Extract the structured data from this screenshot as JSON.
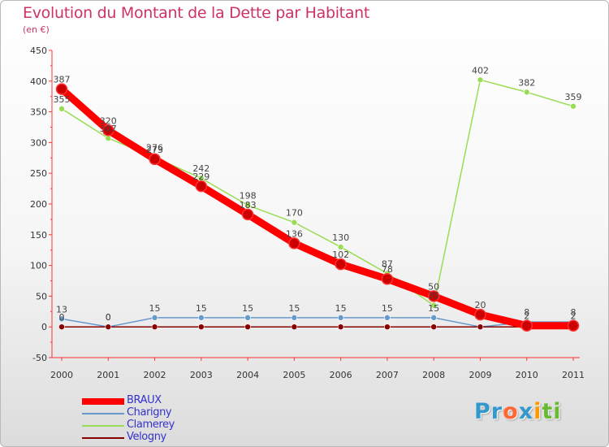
{
  "chart_data": {
    "type": "line",
    "title": "Evolution du Montant de la Dette par Habitant",
    "subtitle": "(en €)",
    "xlabel": "",
    "ylabel": "",
    "x": [
      "2000",
      "2001",
      "2002",
      "2003",
      "2004",
      "2005",
      "2006",
      "2007",
      "2008",
      "2009",
      "2010",
      "2011"
    ],
    "ylim": [
      -50,
      450
    ],
    "yticks": [
      -50,
      0,
      50,
      100,
      150,
      200,
      250,
      300,
      350,
      400,
      450
    ],
    "grid": false,
    "legend_position": "bottom-left",
    "series": [
      {
        "name": "BRAUX",
        "color": "#ff0000",
        "width": 9,
        "values": [
          387,
          320,
          273,
          229,
          183,
          136,
          102,
          78,
          50,
          20,
          2,
          2
        ],
        "labels": [
          "387",
          "320",
          "273",
          "229",
          "183",
          "136",
          "102",
          "78",
          "50",
          "20",
          "2",
          "2"
        ]
      },
      {
        "name": "Charigny",
        "color": "#6699cc",
        "width": 1.5,
        "values": [
          13,
          0,
          15,
          15,
          15,
          15,
          15,
          15,
          15,
          0,
          8,
          8
        ],
        "labels": [
          "13",
          "0",
          "15",
          "15",
          "15",
          "15",
          "15",
          "15",
          "15",
          "",
          "8",
          "8"
        ]
      },
      {
        "name": "Clamerey",
        "color": "#99dd55",
        "width": 1.5,
        "values": [
          355,
          307,
          276,
          242,
          198,
          170,
          130,
          87,
          35,
          402,
          382,
          359
        ],
        "labels": [
          "355",
          "307",
          "276",
          "242",
          "198",
          "170",
          "130",
          "87",
          "35",
          "402",
          "382",
          "359"
        ]
      },
      {
        "name": "Velogny",
        "color": "#880000",
        "width": 1.5,
        "values": [
          0,
          0,
          0,
          0,
          0,
          0,
          0,
          0,
          0,
          0,
          0,
          0
        ],
        "labels": [
          "0",
          "0",
          "",
          "",
          "",
          "",
          "",
          "",
          "",
          "",
          "",
          ""
        ]
      }
    ]
  },
  "brand": {
    "name": "Proxiti",
    "letters": [
      "P",
      "r",
      "o",
      "x",
      "i",
      "t",
      "i"
    ],
    "colors": [
      "#3399cc",
      "#3399cc",
      "#ff6633",
      "#3399cc",
      "#ff9900",
      "#66bb33",
      "#66bb33"
    ]
  }
}
